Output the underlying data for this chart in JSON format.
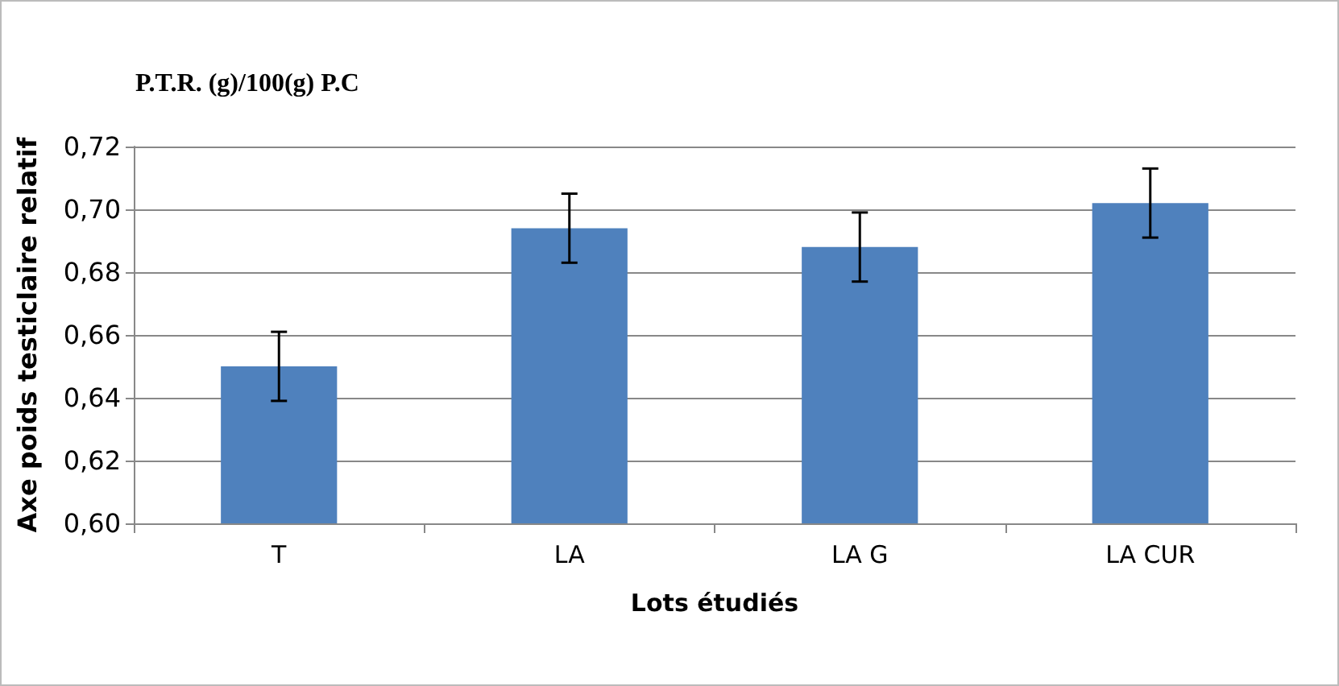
{
  "chart_data": {
    "type": "bar",
    "title": "P.T.R. (g)/100(g) P.C",
    "xlabel": "Lots étudiés",
    "ylabel": "Axe poids testiclaire relatif",
    "categories": [
      "T",
      "LA",
      "LA G",
      "LA CUR"
    ],
    "values": [
      0.65,
      0.694,
      0.688,
      0.702
    ],
    "errors": [
      0.011,
      0.011,
      0.011,
      0.011
    ],
    "color": "#4f81bd",
    "ylim": [
      0.6,
      0.72
    ],
    "yticks": [
      {
        "value": 0.6,
        "label": "0,60"
      },
      {
        "value": 0.62,
        "label": "0,62"
      },
      {
        "value": 0.64,
        "label": "0,64"
      },
      {
        "value": 0.66,
        "label": "0,66"
      },
      {
        "value": 0.68,
        "label": "0,68"
      },
      {
        "value": 0.7,
        "label": "0,70"
      },
      {
        "value": 0.72,
        "label": "0,72"
      }
    ],
    "grid": "y"
  }
}
